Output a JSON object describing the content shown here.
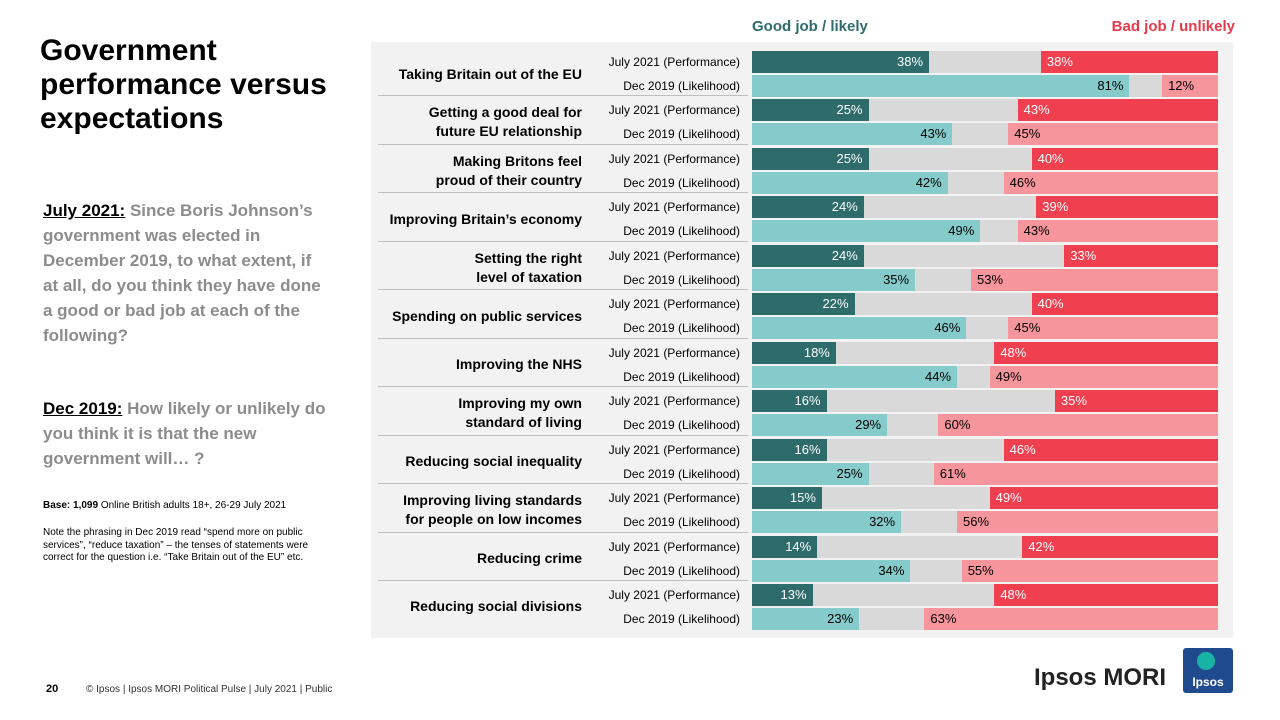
{
  "chart_data": {
    "type": "bar",
    "title": "Government performance versus expectations",
    "categories": [
      "Taking Britain out of the EU",
      "Getting a good deal for future EU relationship",
      "Making Britons feel proud of their country",
      "Improving Britain’s economy",
      "Setting the right level of taxation",
      "Spending on public services",
      "Improving the NHS",
      "Improving my own standard of living",
      "Reducing social inequality",
      "Improving living standards for people on low incomes",
      "Reducing crime",
      "Reducing social divisions"
    ],
    "periods": [
      "July 2021 (Performance)",
      "Dec 2019 (Likelihood)"
    ],
    "xlim": [
      0,
      100
    ],
    "series": [
      {
        "name": "Good job / likely",
        "color": "#2e6b6b",
        "colors": [
          "#2e6b6b",
          "#86cbcb"
        ],
        "side": "left",
        "values": [
          [
            38,
            81
          ],
          [
            25,
            43
          ],
          [
            25,
            42
          ],
          [
            24,
            49
          ],
          [
            24,
            35
          ],
          [
            22,
            46
          ],
          [
            18,
            44
          ],
          [
            16,
            29
          ],
          [
            16,
            25
          ],
          [
            15,
            32
          ],
          [
            14,
            34
          ],
          [
            13,
            23
          ]
        ],
        "value_labels": [
          [
            "38%",
            "81%"
          ],
          [
            "25%",
            "43%"
          ],
          [
            "25%",
            "42%"
          ],
          [
            "24%",
            "49%"
          ],
          [
            "24%",
            "35%"
          ],
          [
            "22%",
            "46%"
          ],
          [
            "18%",
            "44%"
          ],
          [
            "16%",
            "29%"
          ],
          [
            "16%",
            "25%"
          ],
          [
            "15%",
            "32%"
          ],
          [
            "14%",
            "34%"
          ],
          [
            "13%",
            "23%"
          ]
        ]
      },
      {
        "name": "Bad job / unlikely",
        "color": "#e8394b",
        "colors": [
          "#f0404f",
          "#f6959c"
        ],
        "side": "right",
        "values": [
          [
            38,
            12
          ],
          [
            43,
            45
          ],
          [
            40,
            46
          ],
          [
            39,
            43
          ],
          [
            33,
            53
          ],
          [
            40,
            45
          ],
          [
            48,
            49
          ],
          [
            35,
            60
          ],
          [
            46,
            61
          ],
          [
            49,
            56
          ],
          [
            42,
            55
          ],
          [
            48,
            63
          ]
        ],
        "value_labels": [
          [
            "38%",
            "12%"
          ],
          [
            "43%",
            "45%"
          ],
          [
            "40%",
            "46%"
          ],
          [
            "39%",
            "43%"
          ],
          [
            "33%",
            "53%"
          ],
          [
            "40%",
            "45%"
          ],
          [
            "48%",
            "49%"
          ],
          [
            "35%",
            "60%"
          ],
          [
            "46%",
            "61%"
          ],
          [
            "49%",
            "56%"
          ],
          [
            "42%",
            "55%"
          ],
          [
            "48%",
            "63%"
          ]
        ]
      }
    ]
  },
  "questions": [
    {
      "label": "July 2021:",
      "text": "Since Boris Johnson’s government was elected in December 2019, to what extent, if at all, do you think they have done a good or bad job at each of the following?"
    },
    {
      "label": "Dec 2019:",
      "text": "How likely or unlikely do you think it is that the new government will… ?"
    }
  ],
  "base": {
    "label": "Base: 1,099",
    "text": "Online British adults 18+, 26-29 July 2021"
  },
  "note": "Note the phrasing in Dec 2019 read “spend more on public services”, “reduce taxation” – the tenses of statements were correct for the question i.e. “Take Britain out of the EU” etc.",
  "footer": {
    "page": "20",
    "text": "© Ipsos | Ipsos MORI Political Pulse | July 2021 | Public",
    "brand": "Ipsos MORI",
    "logo": "Ipsos"
  }
}
